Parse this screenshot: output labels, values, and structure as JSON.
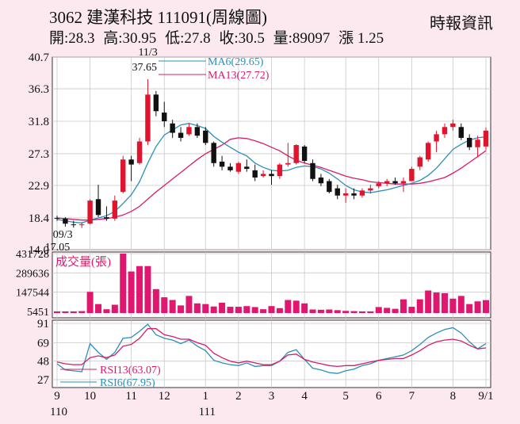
{
  "header": {
    "code": "3062",
    "name": "建漢科技",
    "date": "111091",
    "period": "(周線圖)",
    "source": "時報資訊",
    "open": "開:28.3",
    "high": "高:30.95",
    "low": "低:27.8",
    "close": "收:30.5",
    "volume": "量:89097",
    "change": "漲 1.25"
  },
  "colors": {
    "up": "#e0142c",
    "down": "#111111",
    "ma6": "#2b8fb8",
    "ma13": "#d81b6a",
    "volume": "#e0176e",
    "rsi13": "#d81b6a",
    "rsi6": "#2b8fb8",
    "grid": "#c9c9c9",
    "background": "#fbe9ef"
  },
  "chart_data": [
    {
      "type": "candlestick",
      "y_ticks": [
        "40.7",
        "36.3",
        "31.8",
        "27.3",
        "22.9",
        "18.4",
        "14.0"
      ],
      "ylim": [
        14.0,
        40.7
      ],
      "x_ticks": [
        {
          "label": "9",
          "week": 0
        },
        {
          "label": "10",
          "week": 4
        },
        {
          "label": "11",
          "week": 9
        },
        {
          "label": "12",
          "week": 13
        },
        {
          "label": "1",
          "week": 18
        },
        {
          "label": "2",
          "week": 22
        },
        {
          "label": "3",
          "week": 26
        },
        {
          "label": "4",
          "week": 30
        },
        {
          "label": "5",
          "week": 35
        },
        {
          "label": "6",
          "week": 39
        },
        {
          "label": "7",
          "week": 43
        },
        {
          "label": "8",
          "week": 48
        },
        {
          "label": "9/1",
          "week": 52
        }
      ],
      "year_labels": [
        {
          "label": "110",
          "week": 0
        },
        {
          "label": "111",
          "week": 18
        }
      ],
      "annotations": [
        {
          "date": "11/3",
          "value": "37.65",
          "week": 11,
          "y": 37.65
        },
        {
          "date": "09/3",
          "value": "17.05",
          "week": 2,
          "y": 17.05
        }
      ],
      "legend": [
        {
          "label": "MA6(29.65)",
          "series": "ma6"
        },
        {
          "label": "MA13(27.72)",
          "series": "ma13"
        }
      ],
      "ohlc": [
        [
          18.4,
          18.7,
          18.0,
          18.3
        ],
        [
          18.3,
          18.5,
          17.2,
          17.6
        ],
        [
          17.5,
          18.0,
          17.05,
          17.4
        ],
        [
          17.4,
          17.8,
          17.0,
          17.5
        ],
        [
          17.6,
          21.0,
          17.5,
          20.8
        ],
        [
          21.0,
          23.0,
          18.5,
          18.8
        ],
        [
          18.5,
          20.0,
          18.0,
          18.3
        ],
        [
          18.3,
          21.5,
          18.0,
          20.8
        ],
        [
          22.0,
          27.0,
          21.8,
          26.5
        ],
        [
          26.5,
          27.0,
          23.5,
          25.8
        ],
        [
          26.0,
          29.5,
          25.8,
          29.0
        ],
        [
          29.0,
          37.65,
          28.5,
          35.5
        ],
        [
          35.5,
          36.0,
          32.5,
          33.2
        ],
        [
          33.0,
          34.5,
          31.0,
          31.8
        ],
        [
          31.5,
          32.0,
          29.5,
          30.2
        ],
        [
          30.2,
          31.0,
          29.0,
          29.5
        ],
        [
          30.0,
          31.5,
          29.8,
          31.0
        ],
        [
          31.0,
          31.5,
          29.5,
          29.8
        ],
        [
          30.5,
          31.0,
          28.5,
          28.8
        ],
        [
          28.8,
          29.0,
          25.5,
          26.0
        ],
        [
          26.2,
          27.0,
          25.0,
          25.5
        ],
        [
          25.5,
          26.0,
          24.8,
          25.0
        ],
        [
          24.8,
          26.2,
          24.5,
          26.0
        ],
        [
          25.5,
          26.5,
          24.8,
          25.2
        ],
        [
          25.0,
          25.8,
          23.5,
          24.0
        ],
        [
          24.2,
          25.0,
          24.0,
          24.5
        ],
        [
          24.5,
          25.0,
          23.0,
          24.2
        ],
        [
          24.2,
          26.0,
          23.8,
          25.8
        ],
        [
          25.8,
          28.8,
          25.5,
          26.0
        ],
        [
          26.0,
          28.6,
          25.8,
          28.5
        ],
        [
          28.3,
          28.5,
          26.0,
          26.3
        ],
        [
          26.0,
          26.5,
          23.5,
          23.8
        ],
        [
          24.0,
          24.5,
          22.8,
          23.2
        ],
        [
          23.5,
          23.8,
          21.8,
          22.0
        ],
        [
          22.5,
          23.0,
          21.0,
          21.5
        ],
        [
          21.5,
          22.5,
          20.5,
          21.8
        ],
        [
          21.8,
          22.5,
          21.0,
          21.5
        ],
        [
          21.5,
          22.5,
          21.2,
          22.2
        ],
        [
          22.2,
          23.0,
          21.8,
          22.5
        ],
        [
          22.8,
          23.5,
          22.5,
          23.2
        ],
        [
          23.2,
          23.8,
          22.8,
          23.5
        ],
        [
          23.5,
          24.0,
          23.0,
          23.2
        ],
        [
          23.2,
          24.0,
          22.0,
          23.5
        ],
        [
          23.5,
          25.5,
          23.5,
          25.2
        ],
        [
          25.5,
          27.0,
          25.0,
          26.8
        ],
        [
          26.5,
          29.0,
          26.2,
          28.8
        ],
        [
          29.0,
          30.5,
          27.5,
          30.0
        ],
        [
          30.0,
          31.5,
          29.5,
          31.0
        ],
        [
          31.0,
          32.0,
          30.5,
          31.5
        ],
        [
          31.0,
          31.5,
          29.2,
          29.5
        ],
        [
          29.5,
          30.0,
          27.8,
          28.2
        ],
        [
          28.2,
          29.8,
          26.8,
          29.25
        ],
        [
          28.3,
          30.95,
          27.8,
          30.5
        ]
      ],
      "ma6": [
        18.2,
        18.0,
        17.8,
        17.7,
        18.1,
        18.4,
        18.7,
        19.3,
        20.4,
        21.6,
        23.4,
        26.0,
        28.3,
        29.9,
        30.6,
        31.3,
        31.5,
        31.2,
        30.8,
        29.7,
        28.9,
        28.2,
        27.5,
        27.0,
        26.0,
        25.4,
        25.0,
        24.9,
        25.0,
        25.4,
        25.6,
        25.5,
        25.2,
        24.6,
        23.8,
        22.9,
        22.3,
        22.0,
        21.9,
        22.1,
        22.3,
        22.6,
        22.9,
        23.2,
        23.6,
        24.3,
        25.3,
        26.6,
        27.9,
        28.6,
        29.2,
        29.5,
        29.65
      ],
      "ma13": [
        18.4,
        18.3,
        18.2,
        18.1,
        18.1,
        18.2,
        18.3,
        18.5,
        18.8,
        19.3,
        20.0,
        21.0,
        22.0,
        22.9,
        23.8,
        24.7,
        25.6,
        26.5,
        27.3,
        27.9,
        28.5,
        29.3,
        29.5,
        29.4,
        29.1,
        28.7,
        28.2,
        27.7,
        27.0,
        26.4,
        26.0,
        25.7,
        25.4,
        25.0,
        24.6,
        24.2,
        23.9,
        23.7,
        23.4,
        23.3,
        23.2,
        23.1,
        23.1,
        23.1,
        23.2,
        23.4,
        23.7,
        24.0,
        24.6,
        25.3,
        26.1,
        26.9,
        27.72
      ]
    },
    {
      "type": "bar",
      "title": "成交量(張)",
      "y_ticks": [
        "431728",
        "289636",
        "147544",
        "5451"
      ],
      "ylim": [
        5451,
        431728
      ],
      "values": [
        5451,
        5451,
        5451,
        8000,
        150000,
        60000,
        22000,
        55000,
        431728,
        300000,
        340000,
        340000,
        170000,
        110000,
        90000,
        50000,
        120000,
        65000,
        60000,
        42000,
        70000,
        40000,
        40000,
        45000,
        38000,
        22000,
        45000,
        30000,
        90000,
        85000,
        65000,
        20000,
        18000,
        20000,
        15000,
        10000,
        8000,
        5451,
        5451,
        38000,
        32000,
        25000,
        95000,
        40000,
        95000,
        160000,
        145000,
        140000,
        100000,
        120000,
        60000,
        80000,
        89097
      ]
    },
    {
      "type": "line",
      "y_ticks": [
        "91",
        "69",
        "48",
        "27"
      ],
      "ylim": [
        27,
        91
      ],
      "legend": [
        {
          "label": "RSI13(63.07)",
          "series": "rsi13"
        },
        {
          "label": "RSI6(67.95)",
          "series": "rsi6"
        }
      ],
      "rsi13": [
        47,
        45,
        44,
        44,
        52,
        54,
        52,
        55,
        65,
        67,
        74,
        85,
        85,
        78,
        76,
        73,
        73,
        69,
        66,
        57,
        52,
        48,
        46,
        48,
        46,
        44,
        44,
        48,
        55,
        56,
        50,
        47,
        45,
        43,
        42,
        43,
        43,
        45,
        47,
        49,
        50,
        51,
        51,
        55,
        60,
        66,
        70,
        72,
        73,
        71,
        66,
        62,
        63.07
      ],
      "rsi6": [
        45,
        38,
        37,
        36,
        68,
        58,
        50,
        58,
        74,
        75,
        82,
        90,
        78,
        74,
        72,
        68,
        72,
        65,
        60,
        49,
        46,
        44,
        43,
        46,
        42,
        43,
        43,
        48,
        58,
        61,
        50,
        40,
        38,
        35,
        34,
        37,
        39,
        43,
        45,
        49,
        51,
        53,
        55,
        60,
        67,
        75,
        80,
        84,
        86,
        80,
        70,
        62,
        67.95
      ]
    }
  ]
}
